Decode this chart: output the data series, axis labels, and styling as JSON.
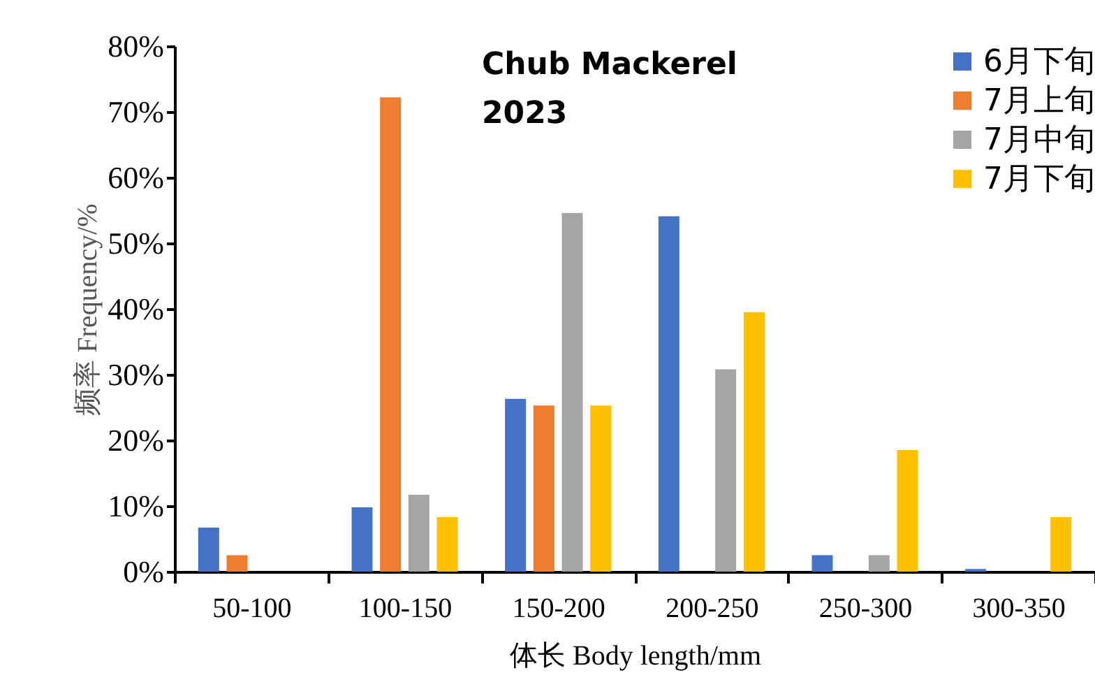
{
  "chart_data": {
    "type": "bar",
    "title": "Chub Mackerel\n2023",
    "xlabel": "体长 Body length/mm",
    "ylabel": "频率 Frequency/%",
    "categories": [
      "50-100",
      "100-150",
      "150-200",
      "200-250",
      "250-300",
      "300-350"
    ],
    "series": [
      {
        "name": "6月下旬",
        "color": "#4472c4",
        "values": [
          6.7,
          9.8,
          26.3,
          54.1,
          2.5,
          0.4
        ]
      },
      {
        "name": "7月上旬",
        "color": "#ed7d31",
        "values": [
          2.5,
          72.2,
          25.3,
          0,
          0,
          0
        ]
      },
      {
        "name": "7月中旬",
        "color": "#a5a5a5",
        "values": [
          0,
          11.7,
          54.6,
          30.8,
          2.5,
          0
        ]
      },
      {
        "name": "7月下旬",
        "color": "#ffc000",
        "values": [
          0,
          8.3,
          25.3,
          39.5,
          18.5,
          8.3
        ]
      }
    ],
    "ylim": [
      0,
      80
    ],
    "yticks": [
      {
        "value": 0,
        "label": "0%"
      },
      {
        "value": 10,
        "label": "10%"
      },
      {
        "value": 20,
        "label": "20%"
      },
      {
        "value": 30,
        "label": "30%"
      },
      {
        "value": 40,
        "label": "40%"
      },
      {
        "value": 50,
        "label": "50%"
      },
      {
        "value": 60,
        "label": "60%"
      },
      {
        "value": 70,
        "label": "70%"
      },
      {
        "value": 80,
        "label": "80%"
      }
    ],
    "grid": false,
    "legend": "top right"
  }
}
